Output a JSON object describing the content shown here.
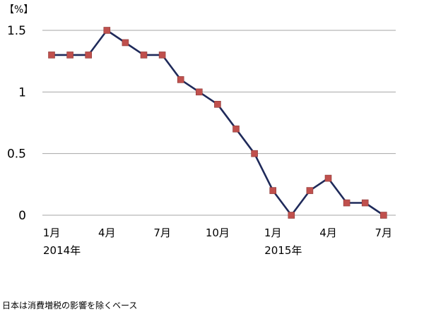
{
  "chart_data": {
    "type": "line",
    "unit_label": "【%】",
    "x": [
      "2014-01",
      "2014-02",
      "2014-03",
      "2014-04",
      "2014-05",
      "2014-06",
      "2014-07",
      "2014-08",
      "2014-09",
      "2014-10",
      "2014-11",
      "2014-12",
      "2015-01",
      "2015-02",
      "2015-03",
      "2015-04",
      "2015-05",
      "2015-06",
      "2015-07"
    ],
    "series": [
      {
        "values": [
          1.3,
          1.3,
          1.3,
          1.5,
          1.4,
          1.3,
          1.3,
          1.1,
          1.0,
          0.9,
          0.7,
          0.5,
          0.2,
          0.0,
          0.2,
          0.3,
          0.1,
          0.1,
          0.0
        ]
      }
    ],
    "ylim": [
      0,
      1.5
    ],
    "y_ticks": [
      "0",
      "0.5",
      "1",
      "1.5"
    ],
    "x_tick_labels": [
      {
        "index": 0,
        "label": "1月"
      },
      {
        "index": 3,
        "label": "4月"
      },
      {
        "index": 6,
        "label": "7月"
      },
      {
        "index": 9,
        "label": "10月"
      },
      {
        "index": 12,
        "label": "1月"
      },
      {
        "index": 15,
        "label": "4月"
      },
      {
        "index": 18,
        "label": "7月"
      }
    ],
    "year_labels": [
      {
        "index": 0,
        "label": "2014年"
      },
      {
        "index": 12,
        "label": "2015年"
      }
    ],
    "grid": true,
    "colors": {
      "line": "#1f2a5a",
      "marker": "#c0504d",
      "grid": "#a6a6a6"
    },
    "note": "日本は消費増税の影響を除くベース"
  }
}
